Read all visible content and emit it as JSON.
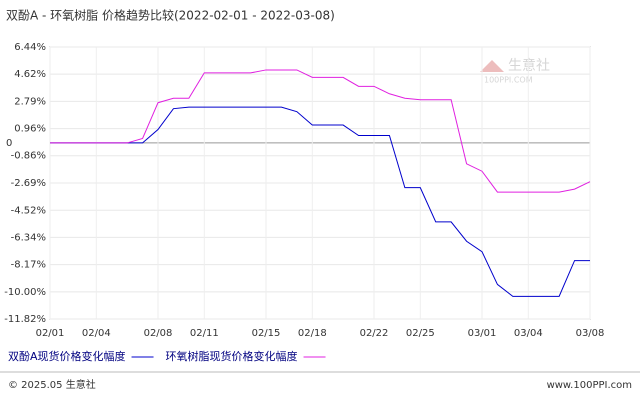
{
  "chart_data": {
    "type": "line",
    "title": "双酚A - 环氧树脂 价格趋势比较(2022-02-01 - 2022-03-08)",
    "watermark": {
      "name": "生意社",
      "site": "100PPI.COM"
    },
    "footer": {
      "left": "© 2025.05 生意社",
      "right": "www.100PPI.com"
    },
    "categories": [
      "02/01",
      null,
      null,
      "02/04",
      null,
      null,
      null,
      "02/08",
      null,
      null,
      "02/11",
      null,
      null,
      null,
      "02/15",
      null,
      null,
      "02/18",
      null,
      null,
      null,
      "02/22",
      null,
      null,
      "02/25",
      null,
      null,
      null,
      "03/01",
      null,
      null,
      "03/04",
      null,
      null,
      null,
      "03/08"
    ],
    "series": [
      {
        "name": "双酚A现货价格变化幅度",
        "color": "#0000cc",
        "values": [
          0,
          0,
          0,
          0,
          0,
          0,
          0,
          0.9,
          2.3,
          2.4,
          2.4,
          2.4,
          2.4,
          2.4,
          2.4,
          2.4,
          2.1,
          1.2,
          1.2,
          1.2,
          0.5,
          0.5,
          0.5,
          -3.0,
          -3.0,
          -5.3,
          -5.3,
          -6.6,
          -7.3,
          -9.5,
          -10.3,
          -10.3,
          -10.3,
          -10.3,
          -7.9,
          -7.9
        ]
      },
      {
        "name": "环氧树脂现货价格变化幅度",
        "color": "#e020e0",
        "values": [
          0,
          0,
          0,
          0,
          0,
          0,
          0.3,
          2.7,
          3.0,
          3.0,
          4.7,
          4.7,
          4.7,
          4.7,
          4.9,
          4.9,
          4.9,
          4.4,
          4.4,
          4.4,
          3.8,
          3.8,
          3.3,
          3.0,
          2.9,
          2.9,
          2.9,
          -1.4,
          -1.9,
          -3.3,
          -3.3,
          -3.3,
          -3.3,
          -3.3,
          -3.1,
          -2.6
        ]
      }
    ],
    "ylim": [
      -11.82,
      6.44
    ],
    "yticks": [
      {
        "value": 6.44,
        "label": "6.44%"
      },
      {
        "value": 4.62,
        "label": "4.62%"
      },
      {
        "value": 2.79,
        "label": "2.79%"
      },
      {
        "value": 0.96,
        "label": "0.96%"
      },
      0,
      {
        "value": -0.86,
        "label": "-0.86%"
      },
      {
        "value": -2.69,
        "label": "-2.69%"
      },
      {
        "value": -4.52,
        "label": "-4.52%"
      },
      {
        "value": -6.34,
        "label": "-6.34%"
      },
      {
        "value": -8.17,
        "label": "-8.17%"
      },
      {
        "value": -10.0,
        "label": "-10.00%"
      },
      {
        "value": -11.82,
        "label": "-11.82%"
      }
    ],
    "grid": true
  }
}
